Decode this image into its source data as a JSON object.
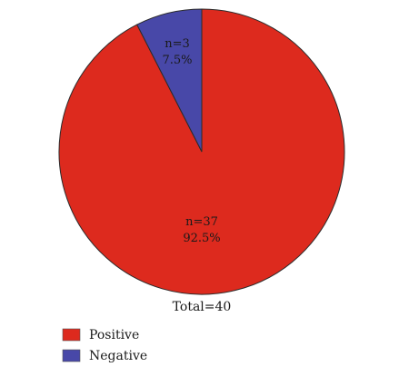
{
  "chart_data": {
    "type": "pie",
    "title": "",
    "categories": [
      "Positive",
      "Negative"
    ],
    "values": [
      37,
      3
    ],
    "percent_labels": [
      "92.5%",
      "7.5%"
    ],
    "count_labels": [
      "n=37",
      "n=3"
    ],
    "colors": [
      "#dd2a1e",
      "#4848a8"
    ],
    "total_label": "Total=40",
    "legend": {
      "placement": "bottom-left",
      "entries": [
        "Positive",
        "Negative"
      ]
    },
    "start_angle": "top, clockwise from Negative slice"
  }
}
